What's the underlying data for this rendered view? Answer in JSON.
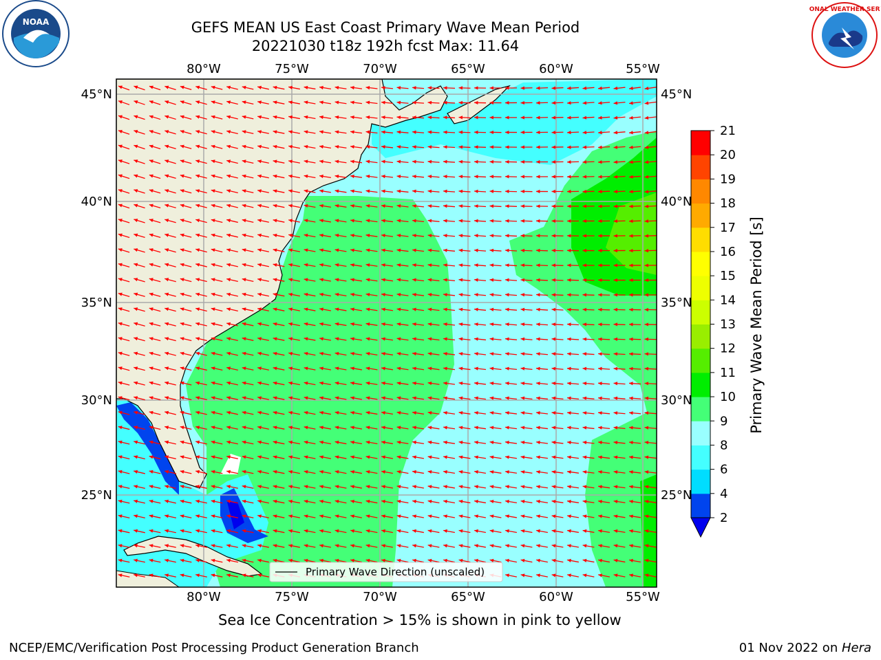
{
  "title_line1": "GEFS MEAN US East Coast Primary Wave Mean Period",
  "title_line2": "20221030 t18z 192h fcst   Max: 11.64",
  "subtitle": "Sea Ice Concentration > 15% is shown in pink to yellow",
  "footer_left": "NCEP/EMC/Verification Post Processing Product Generation Branch",
  "footer_date": "01 Nov 2022 on ",
  "footer_machine": "Hera",
  "legend_label": "Primary Wave Direction (unscaled)",
  "colorbar": {
    "label": "Primary Wave Mean Period [s]",
    "ticks": [
      "2",
      "4",
      "6",
      "8",
      "9",
      "10",
      "11",
      "12",
      "13",
      "14",
      "15",
      "16",
      "17",
      "18",
      "19",
      "20",
      "21"
    ],
    "colors": [
      "#0044ee",
      "#00ddff",
      "#44ffff",
      "#99ffff",
      "#44ff77",
      "#00ee00",
      "#55ee00",
      "#99ee00",
      "#ccff00",
      "#eeff00",
      "#ffff00",
      "#ffdd00",
      "#ffaa00",
      "#ff8800",
      "#ff4400",
      "#ff0000"
    ],
    "extend_color": "#0000ee"
  },
  "map": {
    "lon_labels": [
      "80°W",
      "75°W",
      "70°W",
      "65°W",
      "60°W",
      "55°W"
    ],
    "lat_labels": [
      "45°N",
      "40°N",
      "35°N",
      "30°N",
      "25°N"
    ],
    "land_color": "#efefdc",
    "arrow_color": "#ff0000"
  },
  "logos": {
    "left": "noaa-logo",
    "right_text": "NATIONAL WEATHER SERVICE"
  }
}
